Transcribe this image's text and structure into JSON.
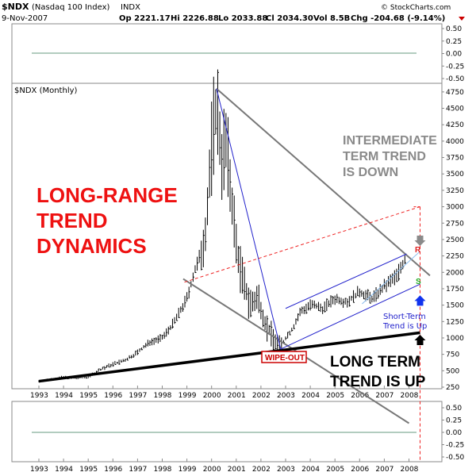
{
  "header": {
    "symbol": "$NDX",
    "name": "(Nasdaq 100 Index)",
    "exchange": "INDX",
    "date": "9-Nov-2007",
    "open": "Op 2221.17",
    "high": "Hi 2226.88",
    "low": "Lo 2033.88",
    "close": "Cl 2034.30",
    "volume": "Vol 8.5B",
    "change": "Chg -204.68 (-9.14%)",
    "watermark": "© StockCharts.com",
    "change_arrow_color": "#cc0000"
  },
  "chart_data": [
    {
      "type": "line",
      "panel": "top-indicator",
      "y_ticks": [
        "0.50",
        "0.25",
        "0.00",
        "-0.25",
        "-0.50"
      ],
      "ylim": [
        -0.5,
        0.5
      ],
      "series": [
        {
          "x": [
            1993,
            2008
          ],
          "y": [
            0,
            0
          ],
          "color": "#99bbaa"
        }
      ]
    },
    {
      "type": "line",
      "panel": "price",
      "title": "$NDX (Monthly)",
      "x_ticks": [
        "1993",
        "1994",
        "1995",
        "1996",
        "1997",
        "1998",
        "1999",
        "2000",
        "2001",
        "2002",
        "2003",
        "2004",
        "2005",
        "2006",
        "2007",
        "2008"
      ],
      "y_ticks": [
        "4750",
        "4500",
        "4250",
        "4000",
        "3750",
        "3500",
        "3250",
        "3000",
        "2750",
        "2500",
        "2250",
        "2000",
        "1750",
        "1500",
        "1250",
        "1000",
        "750",
        "500",
        "250"
      ],
      "ylim": [
        250,
        4900
      ],
      "price_x": [
        1993.0,
        1993.5,
        1994.0,
        1994.5,
        1995.0,
        1995.5,
        1996.0,
        1996.5,
        1997.0,
        1997.5,
        1998.0,
        1998.5,
        1999.0,
        1999.3,
        1999.6,
        1999.8,
        2000.0,
        2000.2,
        2000.4,
        2000.6,
        2000.8,
        2001.0,
        2001.3,
        2001.6,
        2001.9,
        2002.2,
        2002.5,
        2002.8,
        2003.0,
        2003.3,
        2003.6,
        2004.0,
        2004.5,
        2005.0,
        2005.5,
        2006.0,
        2006.5,
        2007.0,
        2007.5,
        2007.85
      ],
      "price_y": [
        340,
        370,
        400,
        390,
        410,
        520,
        600,
        660,
        780,
        940,
        1000,
        1250,
        1600,
        2000,
        2300,
        2800,
        3900,
        4600,
        3800,
        3900,
        3200,
        2400,
        1800,
        1500,
        1600,
        1200,
        1000,
        850,
        1000,
        1150,
        1400,
        1500,
        1450,
        1600,
        1550,
        1700,
        1600,
        1780,
        1950,
        2200
      ],
      "trendlines": [
        {
          "name": "primary-channel-upper",
          "color": "#777777",
          "x": [
            2000.2,
            2008.85
          ],
          "y": [
            4800,
            1950
          ]
        },
        {
          "name": "primary-channel-lower",
          "color": "#777777",
          "x": [
            1998.85,
            2008.0
          ],
          "y": [
            1900,
            -300
          ]
        },
        {
          "name": "long-term-support",
          "color": "#000000",
          "x": [
            1993.0,
            2008.45
          ],
          "y": [
            340,
            1080
          ]
        },
        {
          "name": "crash-line",
          "color": "#2222cc",
          "x": [
            2000.2,
            2002.8
          ],
          "y": [
            4800,
            830
          ]
        },
        {
          "name": "short-term-upper",
          "color": "#2222cc",
          "x": [
            2003.0,
            2007.9
          ],
          "y": [
            1450,
            2280
          ]
        },
        {
          "name": "short-term-lower",
          "color": "#2222cc",
          "x": [
            2002.8,
            2008.45
          ],
          "y": [
            830,
            1820
          ]
        },
        {
          "name": "short-term-mid",
          "color": "#88bbee",
          "x": [
            2006.1,
            2008.45
          ],
          "y": [
            1520,
            2320
          ]
        },
        {
          "name": "resistance-dashed",
          "color": "#ee2222",
          "x": [
            1998.9,
            2008.45
          ],
          "y": [
            1850,
            3000
          ]
        }
      ],
      "labels": {
        "left_title_line1": "LONG-RANGE",
        "left_title_line2": "TREND",
        "left_title_line3": "DYNAMICS",
        "intermediate_line1": "INTERMEDIATE",
        "intermediate_line2": "TERM TREND",
        "intermediate_line3": "IS DOWN",
        "long_term_line1": "LONG TERM",
        "long_term_line2": "TREND IS UP",
        "wipeout": "WIPE-OUT",
        "short_term_line1": "Short-Term",
        "short_term_line2": "Trend is Up",
        "marker_r": "R",
        "marker_s": "S"
      }
    },
    {
      "type": "line",
      "panel": "bottom-indicator",
      "y_ticks": [
        "0.50",
        "0.25",
        "0.00",
        "-0.25",
        "-0.50"
      ],
      "ylim": [
        -0.5,
        0.5
      ],
      "x_ticks": [
        "1993",
        "1994",
        "1995",
        "1996",
        "1997",
        "1998",
        "1999",
        "2000",
        "2001",
        "2002",
        "2003",
        "2004",
        "2005",
        "2006",
        "2007",
        "2008"
      ],
      "series": [
        {
          "x": [
            1993,
            2008
          ],
          "y": [
            0,
            0
          ],
          "color": "#99bbaa"
        }
      ]
    }
  ]
}
